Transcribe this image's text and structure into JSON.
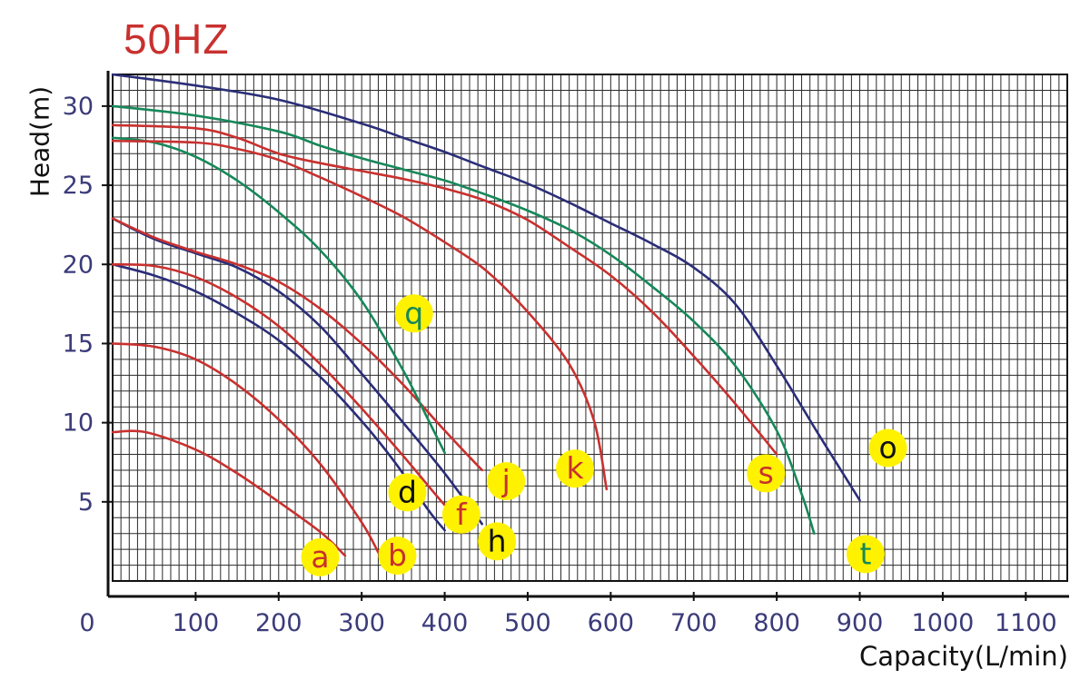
{
  "chart_data": {
    "type": "line",
    "title": "50HZ",
    "xlabel": "Capacity(L/min)",
    "ylabel": "Head(m)",
    "xlim": [
      0,
      1150
    ],
    "ylim": [
      0,
      32
    ],
    "x_ticks": [
      "0",
      "100",
      "200",
      "300",
      "400",
      "500",
      "600",
      "700",
      "800",
      "900",
      "1000",
      "1100"
    ],
    "y_ticks": [
      "5",
      "10",
      "15",
      "20",
      "25",
      "30"
    ],
    "grid": true,
    "colors": {
      "red": "#c8312f",
      "green": "#17885a",
      "navy": "#2b2e78",
      "title": "#c8312f",
      "tick": "#3b3b7a",
      "badge": "#fff200",
      "grid": "#2a2a2a"
    },
    "series": [
      {
        "label": "a",
        "color": "red",
        "points": [
          [
            0,
            9.4
          ],
          [
            40,
            9.4
          ],
          [
            100,
            8.3
          ],
          [
            150,
            6.8
          ],
          [
            200,
            5
          ],
          [
            250,
            3.1
          ],
          [
            280,
            1.6
          ]
        ],
        "label_at": [
          250,
          1.5
        ],
        "label_color": "red"
      },
      {
        "label": "b",
        "color": "red",
        "points": [
          [
            0,
            15
          ],
          [
            50,
            14.8
          ],
          [
            100,
            14
          ],
          [
            150,
            12.4
          ],
          [
            200,
            10.2
          ],
          [
            250,
            7.4
          ],
          [
            300,
            3.7
          ],
          [
            320,
            1.8
          ]
        ],
        "label_at": [
          343,
          1.6
        ],
        "label_color": "red"
      },
      {
        "label": "d",
        "color": "navy",
        "points": [
          [
            0,
            20
          ],
          [
            50,
            19.3
          ],
          [
            100,
            18.3
          ],
          [
            150,
            16.9
          ],
          [
            200,
            15.2
          ],
          [
            250,
            12.9
          ],
          [
            300,
            10.1
          ],
          [
            340,
            7.5
          ],
          [
            380,
            4.5
          ],
          [
            400,
            3.2
          ]
        ],
        "label_at": [
          355,
          5.6
        ],
        "label_color": "black"
      },
      {
        "label": "f",
        "color": "red",
        "points": [
          [
            0,
            20
          ],
          [
            50,
            19.9
          ],
          [
            100,
            19.2
          ],
          [
            150,
            17.9
          ],
          [
            200,
            16.1
          ],
          [
            250,
            13.7
          ],
          [
            300,
            10.9
          ],
          [
            350,
            7.9
          ],
          [
            390,
            5.4
          ],
          [
            410,
            4.2
          ]
        ],
        "label_at": [
          420,
          4.2
        ],
        "label_color": "red"
      },
      {
        "label": "h",
        "color": "navy",
        "points": [
          [
            0,
            22.9
          ],
          [
            50,
            21.6
          ],
          [
            100,
            20.7
          ],
          [
            150,
            19.8
          ],
          [
            200,
            18.3
          ],
          [
            250,
            16.1
          ],
          [
            300,
            13.1
          ],
          [
            350,
            10
          ],
          [
            400,
            6.8
          ],
          [
            445,
            3.6
          ]
        ],
        "label_at": [
          463,
          2.5
        ],
        "label_color": "black"
      },
      {
        "label": "j",
        "color": "red",
        "points": [
          [
            0,
            22.9
          ],
          [
            50,
            21.7
          ],
          [
            100,
            20.8
          ],
          [
            150,
            20
          ],
          [
            200,
            18.9
          ],
          [
            250,
            17.2
          ],
          [
            300,
            15
          ],
          [
            350,
            12.4
          ],
          [
            400,
            9.5
          ],
          [
            445,
            7
          ]
        ],
        "label_at": [
          474,
          6.3
        ],
        "label_color": "red"
      },
      {
        "label": "q",
        "color": "green",
        "points": [
          [
            0,
            28
          ],
          [
            50,
            27.7
          ],
          [
            100,
            26.8
          ],
          [
            150,
            25.3
          ],
          [
            200,
            23.3
          ],
          [
            250,
            20.9
          ],
          [
            300,
            17.7
          ],
          [
            350,
            13.3
          ],
          [
            380,
            10.2
          ],
          [
            400,
            8.1
          ]
        ],
        "label_at": [
          363,
          16.9
        ],
        "label_color": "green"
      },
      {
        "label": "k",
        "color": "red",
        "points": [
          [
            0,
            27.8
          ],
          [
            100,
            27.7
          ],
          [
            150,
            27.3
          ],
          [
            200,
            26.6
          ],
          [
            250,
            25.5
          ],
          [
            300,
            24.3
          ],
          [
            350,
            23
          ],
          [
            400,
            21.4
          ],
          [
            450,
            19.6
          ],
          [
            500,
            17
          ],
          [
            550,
            13.7
          ],
          [
            580,
            10.1
          ],
          [
            595,
            5.8
          ]
        ],
        "label_at": [
          557,
          7.1
        ],
        "label_color": "red"
      },
      {
        "label": "s",
        "color": "red",
        "points": [
          [
            0,
            28.8
          ],
          [
            100,
            28.6
          ],
          [
            150,
            28
          ],
          [
            200,
            27
          ],
          [
            250,
            26.4
          ],
          [
            300,
            25.9
          ],
          [
            350,
            25.4
          ],
          [
            400,
            24.8
          ],
          [
            450,
            24
          ],
          [
            500,
            22.8
          ],
          [
            550,
            21.1
          ],
          [
            600,
            19.3
          ],
          [
            650,
            17
          ],
          [
            700,
            14.2
          ],
          [
            750,
            11.2
          ],
          [
            800,
            8
          ]
        ],
        "label_at": [
          787,
          6.8
        ],
        "label_color": "red"
      },
      {
        "label": "t",
        "color": "green",
        "points": [
          [
            0,
            30
          ],
          [
            100,
            29.4
          ],
          [
            200,
            28.4
          ],
          [
            250,
            27.5
          ],
          [
            300,
            26.7
          ],
          [
            350,
            26
          ],
          [
            400,
            25.3
          ],
          [
            450,
            24.4
          ],
          [
            500,
            23.4
          ],
          [
            550,
            22.2
          ],
          [
            600,
            20.6
          ],
          [
            650,
            18.6
          ],
          [
            700,
            16.4
          ],
          [
            750,
            13.6
          ],
          [
            800,
            9.5
          ],
          [
            830,
            5.5
          ],
          [
            845,
            3
          ]
        ],
        "label_at": [
          907,
          1.7
        ],
        "label_color": "green"
      },
      {
        "label": "o",
        "color": "navy",
        "points": [
          [
            0,
            32
          ],
          [
            100,
            31.3
          ],
          [
            200,
            30.4
          ],
          [
            300,
            28.9
          ],
          [
            350,
            28
          ],
          [
            400,
            27.1
          ],
          [
            450,
            26.1
          ],
          [
            500,
            25.1
          ],
          [
            550,
            23.9
          ],
          [
            600,
            22.6
          ],
          [
            650,
            21.3
          ],
          [
            700,
            19.8
          ],
          [
            750,
            17.5
          ],
          [
            800,
            13.6
          ],
          [
            850,
            9.3
          ],
          [
            900,
            5.1
          ]
        ],
        "label_at": [
          934,
          8.4
        ],
        "label_color": "black"
      }
    ]
  }
}
